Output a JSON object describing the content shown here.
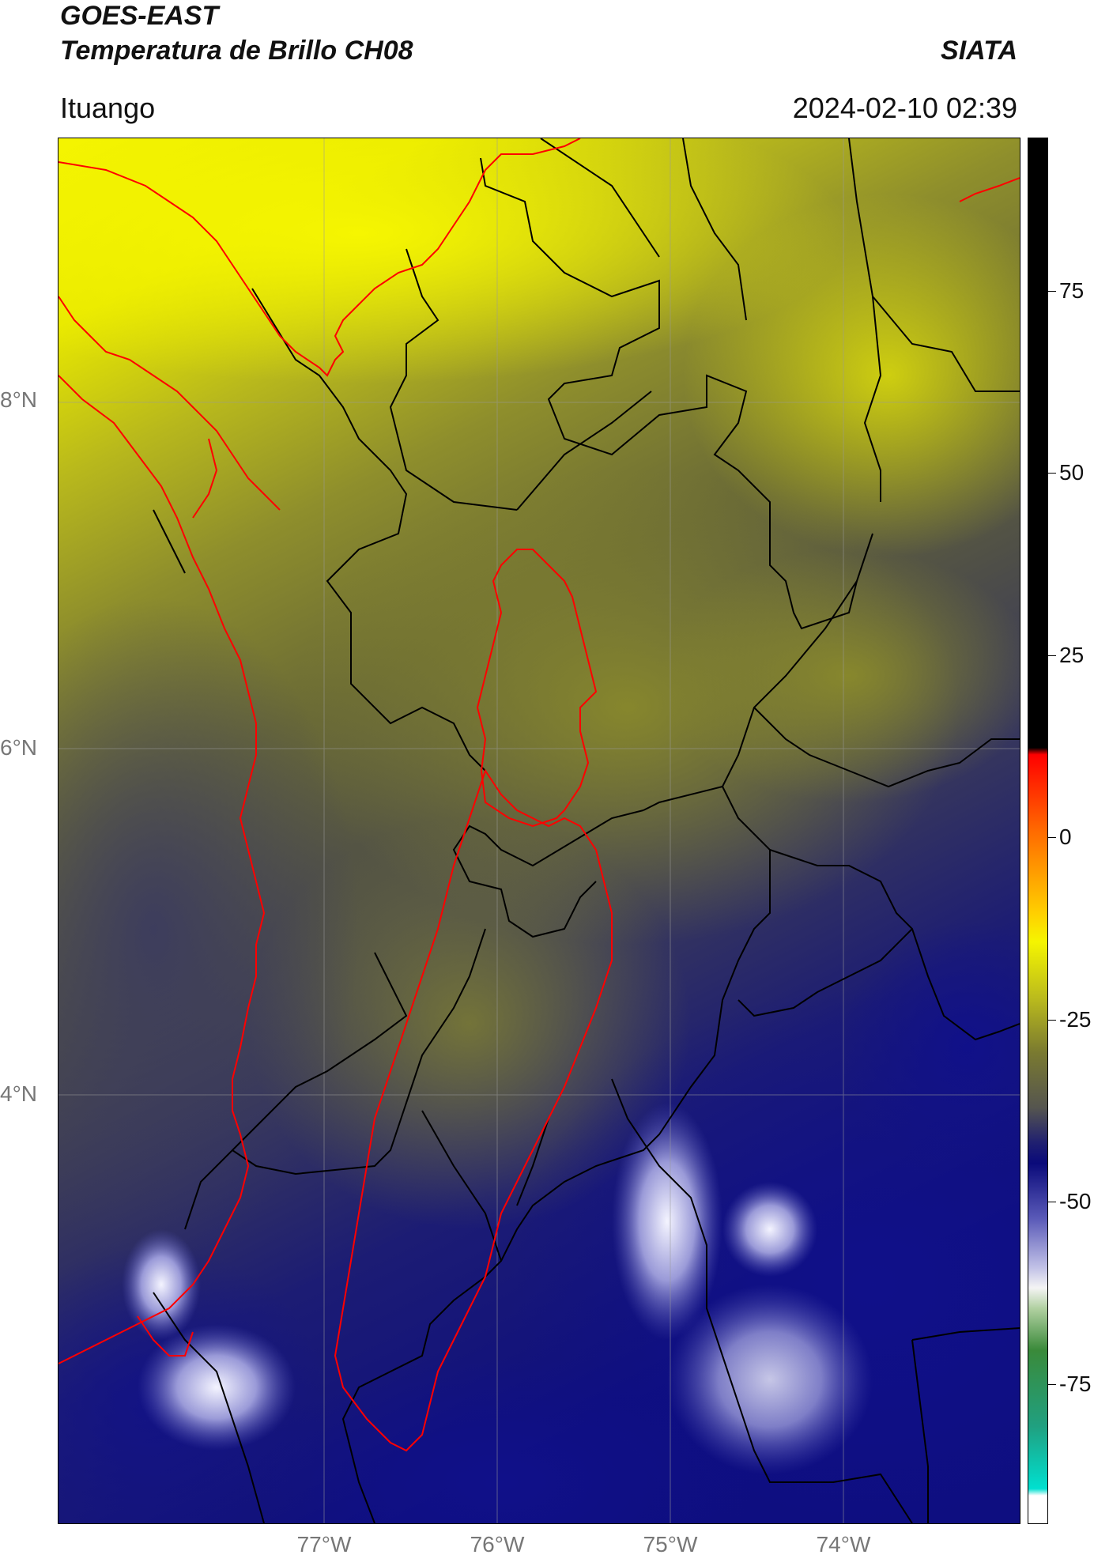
{
  "header": {
    "title_line1": "GOES-EAST",
    "title_line2": "Temperatura de Brillo CH08",
    "organization": "SIATA",
    "region": "Ituango",
    "timestamp": "2024-02-10 02:39"
  },
  "axes": {
    "lat_labels": [
      "8°N",
      "6°N",
      "4°N"
    ],
    "lon_labels": [
      "77°W",
      "76°W",
      "75°W",
      "74°W"
    ]
  },
  "colorbar": {
    "tick_labels": [
      "75",
      "50",
      "25",
      "0",
      "-25",
      "-50",
      "-75"
    ],
    "tick_values": [
      75,
      50,
      25,
      0,
      -25,
      -50,
      -75
    ],
    "range": [
      -94,
      96
    ],
    "colors": {
      "black": "#000000",
      "red": "#ff0000",
      "orange": "#ff8800",
      "yellow": "#f5f500",
      "olive": "#7a7a30",
      "gray": "#55554f",
      "navy": "#0a0a7a",
      "lavender": "#a0a0d8",
      "white": "#f4f4f4",
      "green": "#3a8a3a",
      "cyan": "#00e0d0"
    }
  },
  "map": {
    "colors": {
      "warm_yellow": "#f2f200",
      "olive": "#8a8a2e",
      "dark_olive": "#5e5e3e",
      "slate": "#45455a",
      "navy": "#1a1a70",
      "deep_navy": "#0d0d80",
      "cold_white": "#e0e0f4",
      "boundary_black": "#000000",
      "boundary_red": "#ff0000"
    }
  }
}
